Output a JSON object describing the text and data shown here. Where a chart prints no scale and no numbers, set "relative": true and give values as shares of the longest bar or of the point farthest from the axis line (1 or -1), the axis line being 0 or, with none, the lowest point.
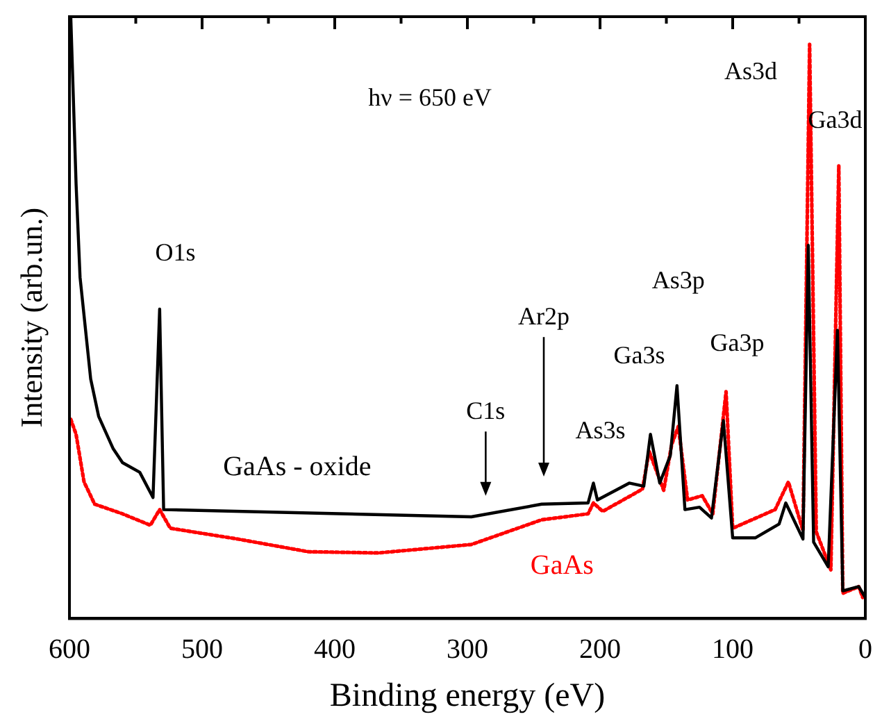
{
  "chart_data": {
    "type": "line",
    "relative": true,
    "xlabel": "Binding energy (eV)",
    "ylabel": "Intensity (arb.un.)",
    "xlim": [
      600,
      0
    ],
    "xticks": [
      600,
      {
        "value": 550,
        "label": null
      },
      500,
      {
        "value": 450,
        "label": null
      },
      400,
      {
        "value": 350,
        "label": null
      },
      300,
      {
        "value": 250,
        "label": null
      },
      200,
      {
        "value": 150,
        "label": null
      },
      100,
      {
        "value": 50,
        "label": null
      },
      0
    ],
    "grid": false,
    "legend": false,
    "marker": "none",
    "annotations": [
      "hν = 650 eV",
      "O1s",
      "C1s",
      "Ar2p",
      "As3s",
      "Ga3s",
      "As3p",
      "Ga3p",
      "As3d",
      "Ga3d"
    ],
    "series": [
      {
        "name": "GaAs - oxide",
        "color": "#000000",
        "line_style": "solid",
        "x": [
          599,
          595,
          592,
          584,
          578,
          567,
          560,
          547,
          537,
          532,
          529,
          297,
          244,
          209,
          205,
          202,
          178,
          167,
          162,
          155,
          147,
          142,
          136,
          125,
          116,
          107,
          100,
          83,
          65,
          60,
          47,
          43,
          39,
          28,
          21,
          17,
          5,
          0
        ],
        "values": [
          1.0,
          0.722,
          0.567,
          0.398,
          0.336,
          0.282,
          0.259,
          0.243,
          0.201,
          0.514,
          0.181,
          0.169,
          0.19,
          0.192,
          0.225,
          0.197,
          0.225,
          0.22,
          0.306,
          0.225,
          0.271,
          0.387,
          0.181,
          0.185,
          0.167,
          0.329,
          0.134,
          0.134,
          0.157,
          0.192,
          0.132,
          0.62,
          0.127,
          0.086,
          0.479,
          0.046,
          0.053,
          0.035
        ]
      },
      {
        "name": "GaAs",
        "color": "#ff0000",
        "line_style": "dotted",
        "x": [
          599,
          595,
          589,
          581,
          560,
          539,
          532,
          524,
          473,
          420,
          367,
          297,
          244,
          209,
          205,
          198,
          168,
          163,
          152,
          146,
          141,
          134,
          123,
          115,
          105,
          100,
          68,
          58,
          47,
          42,
          37,
          26,
          20,
          17,
          5,
          2
        ],
        "values": [
          0.331,
          0.306,
          0.227,
          0.19,
          0.174,
          0.155,
          0.181,
          0.15,
          0.132,
          0.111,
          0.109,
          0.123,
          0.164,
          0.174,
          0.192,
          0.178,
          0.215,
          0.278,
          0.213,
          0.289,
          0.319,
          0.197,
          0.204,
          0.174,
          0.377,
          0.15,
          0.181,
          0.227,
          0.146,
          0.954,
          0.144,
          0.081,
          0.752,
          0.042,
          0.053,
          0.035
        ]
      }
    ]
  }
}
